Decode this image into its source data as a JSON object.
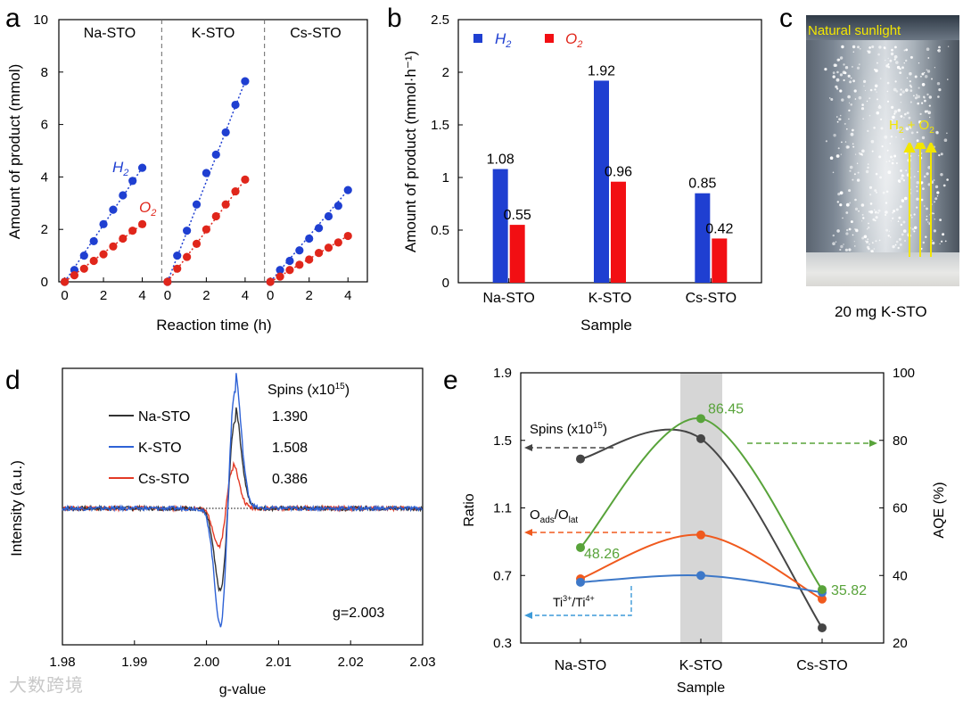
{
  "panel_letters": {
    "a": "a",
    "b": "b",
    "c": "c",
    "d": "d",
    "e": "e"
  },
  "watermark": "大数跨境",
  "chart_data": [
    {
      "panel": "a",
      "type": "scatter",
      "title": "",
      "xlabel": "Reaction time (h)",
      "ylabel": "Amount of product (mmol)",
      "ylim": [
        0,
        10
      ],
      "yticks": [
        0,
        2,
        4,
        6,
        8,
        10
      ],
      "xticks": [
        0,
        2,
        4
      ],
      "xlim": [
        -0.3,
        5.0
      ],
      "segments": [
        "Na-STO",
        "K-STO",
        "Cs-STO"
      ],
      "series_labels": {
        "H2": "H",
        "H2_sub": "2",
        "O2": "O",
        "O2_sub": "2"
      },
      "series": [
        {
          "name": "H2",
          "color": "#1f3fd1",
          "segment": "Na-STO",
          "x": [
            0,
            0.5,
            1,
            1.5,
            2,
            2.5,
            3,
            3.5,
            4
          ],
          "y": [
            0,
            0.45,
            1.0,
            1.55,
            2.2,
            2.75,
            3.3,
            3.85,
            4.35
          ]
        },
        {
          "name": "O2",
          "color": "#e0261b",
          "segment": "Na-STO",
          "x": [
            0,
            0.5,
            1,
            1.5,
            2,
            2.5,
            3,
            3.5,
            4
          ],
          "y": [
            0,
            0.25,
            0.5,
            0.8,
            1.05,
            1.35,
            1.65,
            1.95,
            2.2
          ]
        },
        {
          "name": "H2",
          "color": "#1f3fd1",
          "segment": "K-STO",
          "x": [
            0,
            0.5,
            1,
            1.5,
            2,
            2.5,
            3,
            3.5,
            4
          ],
          "y": [
            0,
            1.0,
            1.95,
            2.95,
            4.15,
            4.85,
            5.7,
            6.75,
            7.65
          ]
        },
        {
          "name": "O2",
          "color": "#e0261b",
          "segment": "K-STO",
          "x": [
            0,
            0.5,
            1,
            1.5,
            2,
            2.5,
            3,
            3.5,
            4
          ],
          "y": [
            0,
            0.5,
            0.95,
            1.45,
            2.0,
            2.5,
            2.95,
            3.45,
            3.9
          ]
        },
        {
          "name": "H2",
          "color": "#1f3fd1",
          "segment": "Cs-STO",
          "x": [
            0,
            0.5,
            1,
            1.5,
            2,
            2.5,
            3,
            3.5,
            4
          ],
          "y": [
            0,
            0.45,
            0.8,
            1.2,
            1.65,
            2.05,
            2.5,
            2.9,
            3.5
          ]
        },
        {
          "name": "O2",
          "color": "#e0261b",
          "segment": "Cs-STO",
          "x": [
            0,
            0.5,
            1,
            1.5,
            2,
            2.5,
            3,
            3.5,
            4
          ],
          "y": [
            0,
            0.2,
            0.45,
            0.65,
            0.85,
            1.1,
            1.3,
            1.5,
            1.75
          ]
        }
      ]
    },
    {
      "panel": "b",
      "type": "bar",
      "xlabel": "Sample",
      "ylabel": "Amount of product (mmol·h⁻¹)",
      "ylim": [
        0,
        2.5
      ],
      "yticks": [
        "0",
        "0.5",
        "1",
        "1.5",
        "2",
        "2.5"
      ],
      "categories": [
        "Na-STO",
        "K-STO",
        "Cs-STO"
      ],
      "legend": {
        "H2": "H",
        "H2_sub": "2",
        "O2": "O",
        "O2_sub": "2"
      },
      "series": [
        {
          "name": "H2",
          "color": "#1f3fd1",
          "values": [
            1.08,
            1.92,
            0.85
          ],
          "labels": [
            "1.08",
            "1.92",
            "0.85"
          ]
        },
        {
          "name": "O2",
          "color": "#f20f13",
          "values": [
            0.55,
            0.96,
            0.42
          ],
          "labels": [
            "0.55",
            "0.96",
            "0.42"
          ]
        }
      ]
    },
    {
      "panel": "c",
      "type": "image",
      "overlay_title": "Natural sunlight",
      "overlay_label": {
        "h": "H",
        "h_sub": "2",
        "plus": " + ",
        "o": "O",
        "o_sub": "2"
      },
      "caption": "20 mg K-STO"
    },
    {
      "panel": "d",
      "type": "line",
      "xlabel": "g-value",
      "ylabel": "Intensity (a.u.)",
      "xlim": [
        1.98,
        2.03
      ],
      "xticks": [
        "1.98",
        "1.99",
        "2.00",
        "2.01",
        "2.02",
        "2.03"
      ],
      "annotation": "g=2.003",
      "legend_header": {
        "text": "Spins  (x10",
        "sup": "15",
        "close": ")"
      },
      "series": [
        {
          "name": "Na-STO",
          "color": "#333333",
          "spins": "1.390",
          "peak_pos": 0.75,
          "peak_neg": -0.7,
          "gmin": 2.0019,
          "gmax": 2.004
        },
        {
          "name": "K-STO",
          "color": "#2e62d6",
          "spins": "1.508",
          "peak_pos": 1.0,
          "peak_neg": -1.0,
          "gmin": 2.0019,
          "gmax": 2.004
        },
        {
          "name": "Cs-STO",
          "color": "#e33a25",
          "spins": "0.386",
          "peak_pos": 0.34,
          "peak_neg": -0.32,
          "gmin": 2.0017,
          "gmax": 2.0037
        }
      ]
    },
    {
      "panel": "e",
      "type": "line",
      "xlabel": "Sample",
      "ylabel_left": "Ratio",
      "ylabel_right": "AQE (%)",
      "categories": [
        "Na-STO",
        "K-STO",
        "Cs-STO"
      ],
      "ylim_left": [
        0.3,
        1.9
      ],
      "yticks_left": [
        "0.3",
        "0.7",
        "1.1",
        "1.5",
        "1.9"
      ],
      "ylim_right": [
        20,
        100
      ],
      "yticks_right": [
        "20",
        "40",
        "60",
        "80",
        "100"
      ],
      "annotations": {
        "spins": {
          "text": "Spins (x10",
          "sup": "15",
          "close": ")"
        },
        "oads": {
          "main": "O",
          "sub1": "ads",
          "sep": "/O",
          "sub2": "lat"
        },
        "ti": {
          "main": "Ti",
          "sup1": "3+",
          "sep": "/Ti",
          "sup2": "4+"
        }
      },
      "series": [
        {
          "name": "Spins",
          "axis": "left",
          "color": "#454545",
          "values": [
            1.39,
            1.51,
            0.39
          ]
        },
        {
          "name": "Oads/Olat",
          "axis": "left",
          "color": "#f05a1e",
          "values": [
            0.68,
            0.94,
            0.56
          ]
        },
        {
          "name": "Ti3+/Ti4+",
          "axis": "left",
          "color": "#3d78c8",
          "values": [
            0.66,
            0.7,
            0.6
          ]
        },
        {
          "name": "AQE",
          "axis": "right",
          "color": "#58a33a",
          "values": [
            48.26,
            86.45,
            35.82
          ],
          "labels": [
            "48.26",
            "86.45",
            "35.82"
          ]
        }
      ]
    }
  ]
}
